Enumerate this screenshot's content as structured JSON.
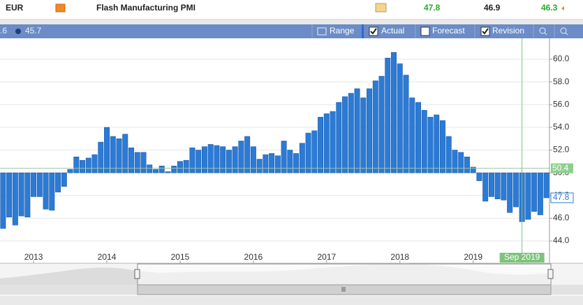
{
  "header": {
    "currency": "EUR",
    "event": "Flash Manufacturing PMI",
    "actual": 47.8,
    "forecast": 46.9,
    "previous": 46.3
  },
  "toolbar": {
    "tooltip_prefix": ".6",
    "range": "Range",
    "actual": "Actual",
    "forecast": "Forecast",
    "revision": "Revision",
    "actual_checked": true,
    "forecast_checked": false,
    "revision_checked": true
  },
  "chart_data": {
    "type": "bar",
    "categories": [
      null,
      null,
      null,
      null,
      null,
      "2013",
      null,
      null,
      null,
      null,
      null,
      null,
      null,
      null,
      null,
      null,
      null,
      "2014",
      null,
      null,
      null,
      null,
      null,
      null,
      null,
      null,
      null,
      null,
      null,
      "2015",
      null,
      null,
      null,
      null,
      null,
      null,
      null,
      null,
      null,
      null,
      null,
      "2016",
      null,
      null,
      null,
      null,
      null,
      null,
      null,
      null,
      null,
      null,
      null,
      "2017",
      null,
      null,
      null,
      null,
      null,
      null,
      null,
      null,
      null,
      null,
      null,
      "2018",
      null,
      null,
      null,
      null,
      null,
      null,
      null,
      null,
      null,
      null,
      null,
      "2019",
      null,
      null,
      null,
      null,
      null,
      null,
      null,
      null,
      null,
      null,
      null,
      null
    ],
    "values": [
      45.1,
      46.1,
      45.4,
      46.2,
      46.1,
      47.9,
      47.9,
      46.8,
      46.7,
      48.3,
      48.8,
      50.3,
      51.4,
      51.1,
      51.3,
      51.6,
      52.7,
      54.0,
      53.2,
      53.0,
      53.4,
      52.2,
      51.8,
      51.8,
      50.7,
      50.3,
      50.6,
      50.1,
      50.6,
      51.0,
      51.1,
      52.2,
      52.0,
      52.3,
      52.5,
      52.4,
      52.3,
      52.0,
      52.3,
      52.8,
      53.2,
      52.3,
      51.2,
      51.6,
      51.7,
      51.5,
      52.8,
      52.0,
      51.7,
      52.6,
      53.5,
      53.7,
      54.9,
      55.2,
      55.4,
      56.2,
      56.7,
      57.0,
      57.4,
      56.6,
      57.4,
      58.1,
      58.5,
      60.1,
      60.6,
      59.6,
      58.6,
      56.6,
      56.2,
      55.5,
      54.9,
      55.1,
      54.6,
      53.2,
      52.0,
      51.8,
      51.4,
      50.5,
      49.3,
      47.5,
      47.9,
      47.7,
      47.6,
      46.5,
      47.0,
      45.7,
      45.9,
      46.6,
      46.3,
      47.8
    ],
    "color": "#2b7bd6",
    "ylim": [
      42.04,
      61.84
    ],
    "yticks": [
      {
        "value": 44,
        "label": "44.0"
      },
      {
        "value": 46,
        "label": "46.0"
      },
      {
        "value": 48,
        "label": "48.0"
      },
      {
        "value": 50,
        "label": "50.0"
      },
      {
        "value": 52,
        "label": "52.0"
      },
      {
        "value": 54,
        "label": "54.0"
      },
      {
        "value": 56,
        "label": "56.0"
      },
      {
        "value": 58,
        "label": "58.0"
      },
      {
        "value": 60,
        "label": "60.0"
      }
    ],
    "reference_line": 50.4,
    "crosshair_label": "Sep 2019",
    "grid": true
  }
}
